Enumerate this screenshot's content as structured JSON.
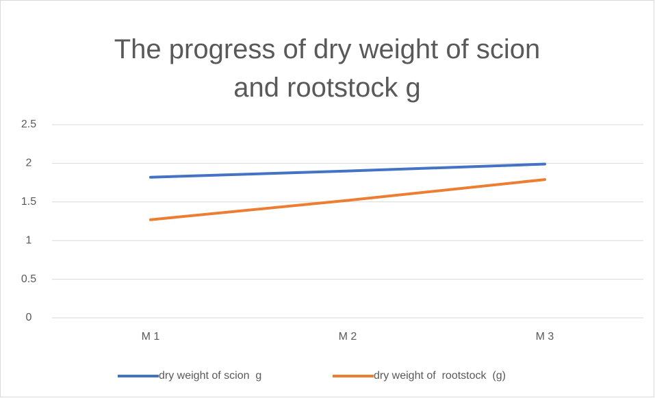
{
  "chart_data": {
    "type": "line",
    "title": "The progress of dry weight of scion and rootstock g",
    "categories": [
      "M 1",
      "M 2",
      "M 3"
    ],
    "series": [
      {
        "name": "dry weight of scion  g",
        "color": "#4472c4",
        "values": [
          1.82,
          1.9,
          1.99
        ]
      },
      {
        "name": "dry weight of  rootstock  (g)",
        "color": "#ed7d31",
        "values": [
          1.27,
          1.52,
          1.79
        ]
      }
    ],
    "ylim": [
      0,
      2.5
    ],
    "yticks": [
      0,
      0.5,
      1,
      1.5,
      2,
      2.5
    ],
    "grid": true,
    "legend": "bottom"
  }
}
